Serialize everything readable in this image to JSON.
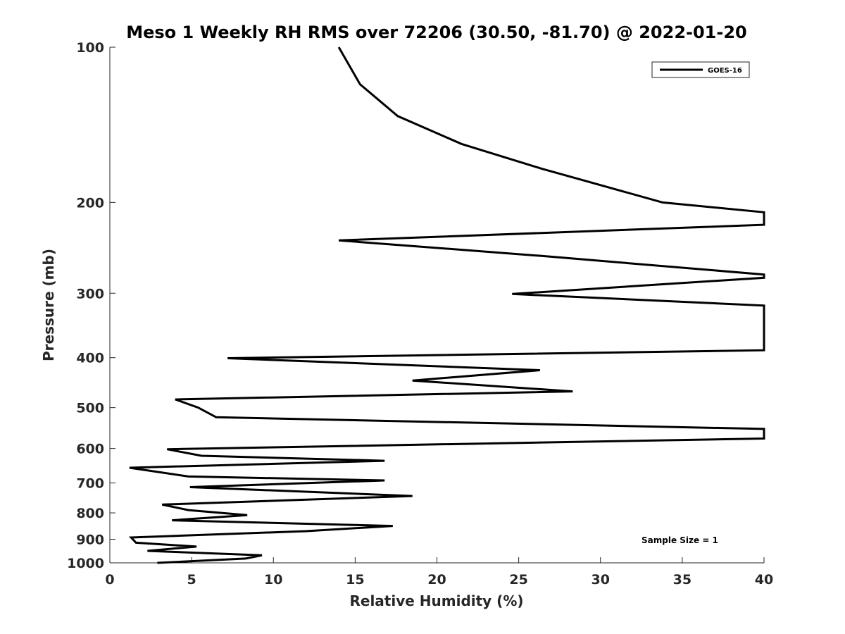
{
  "chart_data": {
    "type": "line",
    "title": "Meso 1 Weekly RH RMS over 72206 (30.50, -81.70) @ 2022-01-20",
    "xlabel": "Relative Humidity (%)",
    "ylabel": "Pressure (mb)",
    "xlim": [
      0,
      40
    ],
    "ylim": [
      100,
      1000
    ],
    "y_scale": "log",
    "y_reversed": true,
    "x_ticks": [
      "0",
      "5",
      "10",
      "15",
      "20",
      "25",
      "30",
      "35",
      "40"
    ],
    "y_ticks": [
      "100",
      "200",
      "300",
      "400",
      "500",
      "600",
      "700",
      "800",
      "900",
      "1000"
    ],
    "grid": false,
    "legend_position": "top-right",
    "series": [
      {
        "name": "GOES-16",
        "color": "#000000",
        "points": [
          [
            14,
            100
          ],
          [
            15.3,
            118
          ],
          [
            17.6,
            136
          ],
          [
            21.5,
            154
          ],
          [
            26.4,
            172
          ],
          [
            33.8,
            200
          ],
          [
            40,
            209
          ],
          [
            40,
            221
          ],
          [
            14,
            237
          ],
          [
            26.4,
            254
          ],
          [
            40,
            276
          ],
          [
            40,
            280
          ],
          [
            24.6,
            301
          ],
          [
            40,
            317
          ],
          [
            40,
            387
          ],
          [
            7.2,
            401
          ],
          [
            26.3,
            423
          ],
          [
            18.5,
            443
          ],
          [
            28.3,
            465
          ],
          [
            4,
            482
          ],
          [
            5.4,
            500
          ],
          [
            6.5,
            522
          ],
          [
            40,
            550
          ],
          [
            40,
            574
          ],
          [
            3.5,
            602
          ],
          [
            5.6,
            620
          ],
          [
            16.8,
            634
          ],
          [
            1.2,
            654
          ],
          [
            4.8,
            680
          ],
          [
            16.8,
            692
          ],
          [
            4.9,
            713
          ],
          [
            18.5,
            742
          ],
          [
            3.2,
            771
          ],
          [
            4.8,
            790
          ],
          [
            8.4,
            808
          ],
          [
            3.8,
            827
          ],
          [
            17.3,
            848
          ],
          [
            12,
            868
          ],
          [
            1.3,
            893
          ],
          [
            1.6,
            914
          ],
          [
            5.3,
            930
          ],
          [
            2.3,
            948
          ],
          [
            9.3,
            967
          ],
          [
            8.3,
            981
          ],
          [
            2.9,
            1000
          ]
        ]
      }
    ],
    "annotations": [
      "Sample Size = 1"
    ]
  }
}
